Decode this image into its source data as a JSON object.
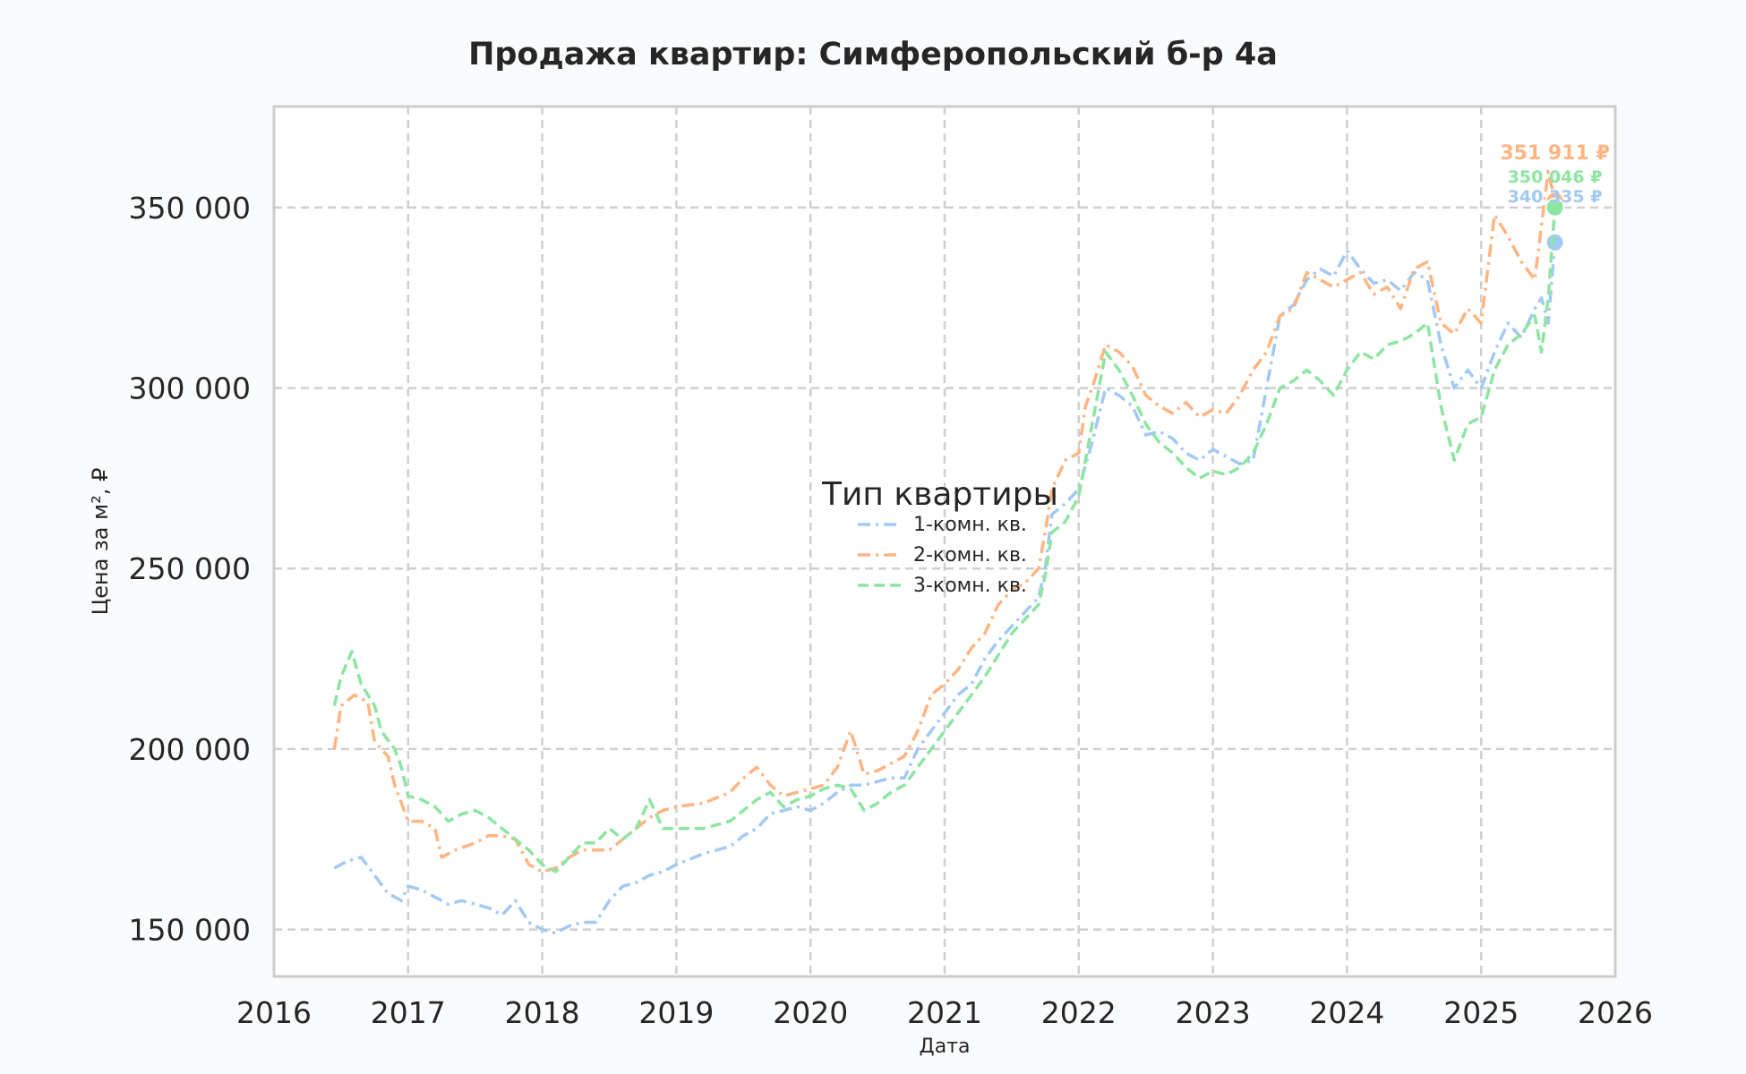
{
  "chart_data": {
    "type": "line",
    "title": "Продажа квартир: Симферопольский б-р 4а",
    "xlabel": "Дата",
    "ylabel": "Цена за м², ₽",
    "xlim": [
      2016.0,
      2026.0
    ],
    "ylim": [
      137000,
      378000
    ],
    "xticks": [
      2016,
      2017,
      2018,
      2019,
      2020,
      2021,
      2022,
      2023,
      2024,
      2025,
      2026
    ],
    "yticks": [
      150000,
      200000,
      250000,
      300000,
      350000
    ],
    "ytick_labels": [
      "150 000",
      "200 000",
      "250 000",
      "300 000",
      "350 000"
    ],
    "grid": true,
    "legend": {
      "title": "Тип квартиры",
      "placement": "center"
    },
    "series": [
      {
        "name": "1-комн. кв.",
        "color": "#a1c9f4",
        "dash": "dashdot",
        "points": [
          [
            2016.45,
            167000
          ],
          [
            2016.55,
            169000
          ],
          [
            2016.65,
            170000
          ],
          [
            2016.75,
            165000
          ],
          [
            2016.85,
            160000
          ],
          [
            2016.95,
            158000
          ],
          [
            2017.0,
            162000
          ],
          [
            2017.1,
            161000
          ],
          [
            2017.2,
            159000
          ],
          [
            2017.3,
            157000
          ],
          [
            2017.4,
            158000
          ],
          [
            2017.5,
            157000
          ],
          [
            2017.6,
            156000
          ],
          [
            2017.7,
            154000
          ],
          [
            2017.8,
            158000
          ],
          [
            2017.9,
            152000
          ],
          [
            2018.0,
            150000
          ],
          [
            2018.1,
            149000
          ],
          [
            2018.2,
            151000
          ],
          [
            2018.3,
            152000
          ],
          [
            2018.4,
            152000
          ],
          [
            2018.5,
            158000
          ],
          [
            2018.6,
            162000
          ],
          [
            2018.7,
            163000
          ],
          [
            2018.8,
            165000
          ],
          [
            2018.9,
            166000
          ],
          [
            2019.0,
            168000
          ],
          [
            2019.2,
            171000
          ],
          [
            2019.4,
            173000
          ],
          [
            2019.5,
            176000
          ],
          [
            2019.6,
            178000
          ],
          [
            2019.7,
            182000
          ],
          [
            2019.8,
            183000
          ],
          [
            2019.9,
            184000
          ],
          [
            2020.0,
            183000
          ],
          [
            2020.1,
            185000
          ],
          [
            2020.2,
            188000
          ],
          [
            2020.3,
            190000
          ],
          [
            2020.4,
            190000
          ],
          [
            2020.5,
            191000
          ],
          [
            2020.6,
            192000
          ],
          [
            2020.7,
            192000
          ],
          [
            2020.8,
            200000
          ],
          [
            2020.9,
            205000
          ],
          [
            2021.0,
            210000
          ],
          [
            2021.1,
            215000
          ],
          [
            2021.2,
            218000
          ],
          [
            2021.3,
            225000
          ],
          [
            2021.4,
            230000
          ],
          [
            2021.5,
            234000
          ],
          [
            2021.6,
            238000
          ],
          [
            2021.7,
            242000
          ],
          [
            2021.75,
            250000
          ],
          [
            2021.8,
            265000
          ],
          [
            2021.9,
            268000
          ],
          [
            2022.0,
            272000
          ],
          [
            2022.1,
            285000
          ],
          [
            2022.2,
            300000
          ],
          [
            2022.3,
            298000
          ],
          [
            2022.4,
            295000
          ],
          [
            2022.5,
            287000
          ],
          [
            2022.6,
            288000
          ],
          [
            2022.7,
            286000
          ],
          [
            2022.8,
            282000
          ],
          [
            2022.9,
            280000
          ],
          [
            2023.0,
            283000
          ],
          [
            2023.1,
            281000
          ],
          [
            2023.2,
            279000
          ],
          [
            2023.3,
            280000
          ],
          [
            2023.4,
            300000
          ],
          [
            2023.5,
            320000
          ],
          [
            2023.6,
            323000
          ],
          [
            2023.7,
            330000
          ],
          [
            2023.8,
            333000
          ],
          [
            2023.9,
            331000
          ],
          [
            2024.0,
            338000
          ],
          [
            2024.1,
            333000
          ],
          [
            2024.2,
            329000
          ],
          [
            2024.3,
            330000
          ],
          [
            2024.4,
            327000
          ],
          [
            2024.5,
            332000
          ],
          [
            2024.6,
            330000
          ],
          [
            2024.7,
            312000
          ],
          [
            2024.8,
            300000
          ],
          [
            2024.9,
            305000
          ],
          [
            2025.0,
            300000
          ],
          [
            2025.1,
            310000
          ],
          [
            2025.2,
            318000
          ],
          [
            2025.3,
            314000
          ],
          [
            2025.4,
            322000
          ],
          [
            2025.45,
            325000
          ],
          [
            2025.5,
            318000
          ],
          [
            2025.55,
            340335
          ]
        ],
        "last_value": 340335,
        "last_label": "340 335 ₽"
      },
      {
        "name": "2-комн. кв.",
        "color": "#ffb482",
        "dash": "dashdot",
        "points": [
          [
            2016.45,
            200000
          ],
          [
            2016.5,
            212000
          ],
          [
            2016.6,
            215000
          ],
          [
            2016.7,
            213000
          ],
          [
            2016.75,
            202000
          ],
          [
            2016.85,
            198000
          ],
          [
            2016.9,
            190000
          ],
          [
            2016.95,
            185000
          ],
          [
            2017.0,
            180000
          ],
          [
            2017.1,
            180000
          ],
          [
            2017.2,
            178000
          ],
          [
            2017.25,
            170000
          ],
          [
            2017.35,
            172000
          ],
          [
            2017.5,
            174000
          ],
          [
            2017.6,
            176000
          ],
          [
            2017.7,
            176000
          ],
          [
            2017.8,
            175000
          ],
          [
            2017.9,
            168000
          ],
          [
            2018.0,
            166000
          ],
          [
            2018.1,
            167000
          ],
          [
            2018.2,
            170000
          ],
          [
            2018.3,
            172000
          ],
          [
            2018.4,
            172000
          ],
          [
            2018.5,
            172000
          ],
          [
            2018.6,
            175000
          ],
          [
            2018.7,
            178000
          ],
          [
            2018.8,
            181000
          ],
          [
            2018.9,
            183000
          ],
          [
            2019.0,
            184000
          ],
          [
            2019.2,
            185000
          ],
          [
            2019.4,
            188000
          ],
          [
            2019.5,
            192000
          ],
          [
            2019.6,
            195000
          ],
          [
            2019.7,
            190000
          ],
          [
            2019.8,
            187000
          ],
          [
            2019.9,
            188000
          ],
          [
            2020.0,
            189000
          ],
          [
            2020.1,
            190000
          ],
          [
            2020.2,
            195000
          ],
          [
            2020.3,
            205000
          ],
          [
            2020.4,
            193000
          ],
          [
            2020.5,
            194000
          ],
          [
            2020.6,
            196000
          ],
          [
            2020.7,
            198000
          ],
          [
            2020.8,
            205000
          ],
          [
            2020.9,
            215000
          ],
          [
            2021.0,
            218000
          ],
          [
            2021.1,
            222000
          ],
          [
            2021.2,
            228000
          ],
          [
            2021.3,
            232000
          ],
          [
            2021.4,
            240000
          ],
          [
            2021.5,
            244000
          ],
          [
            2021.6,
            246000
          ],
          [
            2021.7,
            250000
          ],
          [
            2021.75,
            260000
          ],
          [
            2021.8,
            272000
          ],
          [
            2021.9,
            280000
          ],
          [
            2022.0,
            282000
          ],
          [
            2022.05,
            295000
          ],
          [
            2022.1,
            300000
          ],
          [
            2022.2,
            312000
          ],
          [
            2022.3,
            310000
          ],
          [
            2022.4,
            306000
          ],
          [
            2022.5,
            298000
          ],
          [
            2022.6,
            295000
          ],
          [
            2022.7,
            293000
          ],
          [
            2022.8,
            296000
          ],
          [
            2022.9,
            292000
          ],
          [
            2023.0,
            294000
          ],
          [
            2023.1,
            293000
          ],
          [
            2023.2,
            298000
          ],
          [
            2023.3,
            305000
          ],
          [
            2023.4,
            310000
          ],
          [
            2023.5,
            320000
          ],
          [
            2023.6,
            322000
          ],
          [
            2023.7,
            332000
          ],
          [
            2023.8,
            330000
          ],
          [
            2023.9,
            328000
          ],
          [
            2024.0,
            330000
          ],
          [
            2024.1,
            332000
          ],
          [
            2024.2,
            326000
          ],
          [
            2024.3,
            328000
          ],
          [
            2024.4,
            322000
          ],
          [
            2024.5,
            333000
          ],
          [
            2024.6,
            335000
          ],
          [
            2024.7,
            318000
          ],
          [
            2024.8,
            315000
          ],
          [
            2024.9,
            322000
          ],
          [
            2025.0,
            318000
          ],
          [
            2025.1,
            348000
          ],
          [
            2025.2,
            342000
          ],
          [
            2025.3,
            335000
          ],
          [
            2025.4,
            330000
          ],
          [
            2025.45,
            345000
          ],
          [
            2025.5,
            360000
          ],
          [
            2025.55,
            351911
          ]
        ],
        "last_value": 351911,
        "last_label": "351 911 ₽"
      },
      {
        "name": "3-комн. кв.",
        "color": "#8de5a1",
        "dash": "dashed",
        "points": [
          [
            2016.45,
            212000
          ],
          [
            2016.5,
            220000
          ],
          [
            2016.58,
            227000
          ],
          [
            2016.65,
            218000
          ],
          [
            2016.75,
            212000
          ],
          [
            2016.8,
            205000
          ],
          [
            2016.9,
            200000
          ],
          [
            2016.95,
            195000
          ],
          [
            2017.0,
            187000
          ],
          [
            2017.1,
            186000
          ],
          [
            2017.2,
            184000
          ],
          [
            2017.3,
            180000
          ],
          [
            2017.4,
            182000
          ],
          [
            2017.5,
            183000
          ],
          [
            2017.6,
            181000
          ],
          [
            2017.7,
            178000
          ],
          [
            2017.8,
            175000
          ],
          [
            2017.9,
            172000
          ],
          [
            2018.0,
            168000
          ],
          [
            2018.1,
            166000
          ],
          [
            2018.2,
            170000
          ],
          [
            2018.3,
            174000
          ],
          [
            2018.4,
            174000
          ],
          [
            2018.5,
            178000
          ],
          [
            2018.6,
            175000
          ],
          [
            2018.7,
            178000
          ],
          [
            2018.8,
            186000
          ],
          [
            2018.9,
            178000
          ],
          [
            2019.0,
            178000
          ],
          [
            2019.2,
            178000
          ],
          [
            2019.4,
            180000
          ],
          [
            2019.5,
            183000
          ],
          [
            2019.6,
            186000
          ],
          [
            2019.7,
            188000
          ],
          [
            2019.8,
            184000
          ],
          [
            2019.9,
            186000
          ],
          [
            2020.0,
            187000
          ],
          [
            2020.1,
            189000
          ],
          [
            2020.2,
            190000
          ],
          [
            2020.3,
            189000
          ],
          [
            2020.4,
            183000
          ],
          [
            2020.5,
            185000
          ],
          [
            2020.6,
            188000
          ],
          [
            2020.7,
            190000
          ],
          [
            2020.8,
            195000
          ],
          [
            2020.9,
            200000
          ],
          [
            2021.0,
            205000
          ],
          [
            2021.1,
            210000
          ],
          [
            2021.2,
            215000
          ],
          [
            2021.3,
            220000
          ],
          [
            2021.4,
            226000
          ],
          [
            2021.5,
            232000
          ],
          [
            2021.6,
            236000
          ],
          [
            2021.7,
            240000
          ],
          [
            2021.75,
            248000
          ],
          [
            2021.8,
            260000
          ],
          [
            2021.9,
            263000
          ],
          [
            2022.0,
            270000
          ],
          [
            2022.1,
            290000
          ],
          [
            2022.2,
            310000
          ],
          [
            2022.3,
            305000
          ],
          [
            2022.4,
            298000
          ],
          [
            2022.5,
            290000
          ],
          [
            2022.6,
            285000
          ],
          [
            2022.7,
            282000
          ],
          [
            2022.8,
            278000
          ],
          [
            2022.9,
            275000
          ],
          [
            2023.0,
            277000
          ],
          [
            2023.1,
            276000
          ],
          [
            2023.2,
            278000
          ],
          [
            2023.3,
            282000
          ],
          [
            2023.4,
            290000
          ],
          [
            2023.5,
            300000
          ],
          [
            2023.6,
            302000
          ],
          [
            2023.7,
            305000
          ],
          [
            2023.8,
            302000
          ],
          [
            2023.9,
            298000
          ],
          [
            2024.0,
            305000
          ],
          [
            2024.1,
            310000
          ],
          [
            2024.2,
            308000
          ],
          [
            2024.3,
            312000
          ],
          [
            2024.4,
            313000
          ],
          [
            2024.5,
            315000
          ],
          [
            2024.6,
            318000
          ],
          [
            2024.7,
            295000
          ],
          [
            2024.8,
            280000
          ],
          [
            2024.9,
            290000
          ],
          [
            2025.0,
            292000
          ],
          [
            2025.1,
            305000
          ],
          [
            2025.2,
            312000
          ],
          [
            2025.3,
            315000
          ],
          [
            2025.4,
            320000
          ],
          [
            2025.45,
            310000
          ],
          [
            2025.5,
            325000
          ],
          [
            2025.55,
            350046
          ]
        ],
        "last_value": 350046,
        "last_label": "350 046 ₽"
      }
    ]
  }
}
